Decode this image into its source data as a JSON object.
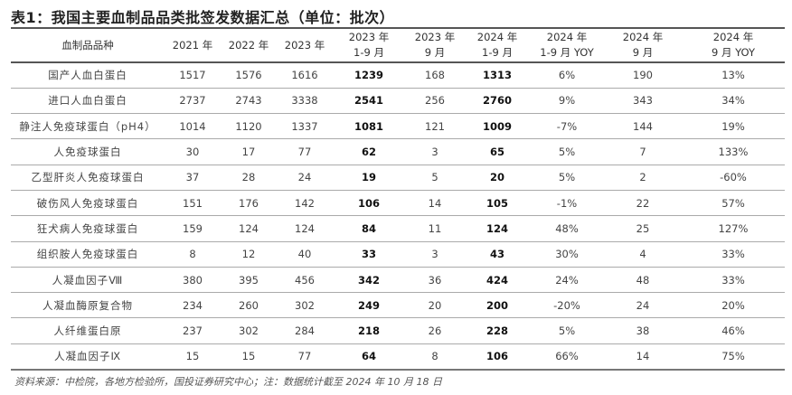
{
  "title": "表1：我国主要血制品品类批签发数据汇总（单位：批次）",
  "headers": [
    [
      "血制品品种",
      ""
    ],
    [
      "2021 年",
      ""
    ],
    [
      "2022 年",
      ""
    ],
    [
      "2023 年",
      ""
    ],
    [
      "2023 年",
      "1-9 月"
    ],
    [
      "2023 年",
      "9 月"
    ],
    [
      "2024 年",
      "1-9 月"
    ],
    [
      "2024 年",
      "1-9 月 YOY"
    ],
    [
      "2024 年",
      "9 月"
    ],
    [
      "2024 年",
      "9 月 YOY"
    ]
  ],
  "rows": [
    [
      "国产人血白蛋白",
      "1517",
      "1576",
      "1616",
      "1239",
      "168",
      "1313",
      "6%",
      "190",
      "13%"
    ],
    [
      "进口人血白蛋白",
      "2737",
      "2743",
      "3338",
      "2541",
      "256",
      "2760",
      "9%",
      "343",
      "34%"
    ],
    [
      "静注人免疫球蛋白（pH4）",
      "1014",
      "1120",
      "1337",
      "1081",
      "121",
      "1009",
      "-7%",
      "144",
      "19%"
    ],
    [
      "人免疫球蛋白",
      "30",
      "17",
      "77",
      "62",
      "3",
      "65",
      "5%",
      "7",
      "133%"
    ],
    [
      "乙型肝炎人免疫球蛋白",
      "37",
      "28",
      "24",
      "19",
      "5",
      "20",
      "5%",
      "2",
      "-60%"
    ],
    [
      "破伤风人免疫球蛋白",
      "151",
      "176",
      "142",
      "106",
      "14",
      "105",
      "-1%",
      "22",
      "57%"
    ],
    [
      "狂犬病人免疫球蛋白",
      "159",
      "124",
      "124",
      "84",
      "11",
      "124",
      "48%",
      "25",
      "127%"
    ],
    [
      "组织胺人免疫球蛋白",
      "8",
      "12",
      "40",
      "33",
      "3",
      "43",
      "30%",
      "4",
      "33%"
    ],
    [
      "人凝血因子Ⅷ",
      "380",
      "395",
      "456",
      "342",
      "36",
      "424",
      "24%",
      "48",
      "33%"
    ],
    [
      "人凝血酶原复合物",
      "234",
      "260",
      "302",
      "249",
      "20",
      "200",
      "-20%",
      "24",
      "20%"
    ],
    [
      "人纤维蛋白原",
      "237",
      "302",
      "284",
      "218",
      "26",
      "228",
      "5%",
      "38",
      "46%"
    ],
    [
      "人凝血因子Ⅸ",
      "15",
      "15",
      "77",
      "64",
      "8",
      "106",
      "66%",
      "14",
      "75%"
    ]
  ],
  "source": "资料来源：中检院，各地方检验所，国投证券研究中心；注：数据统计截至 2024 年 10 月 18 日"
}
